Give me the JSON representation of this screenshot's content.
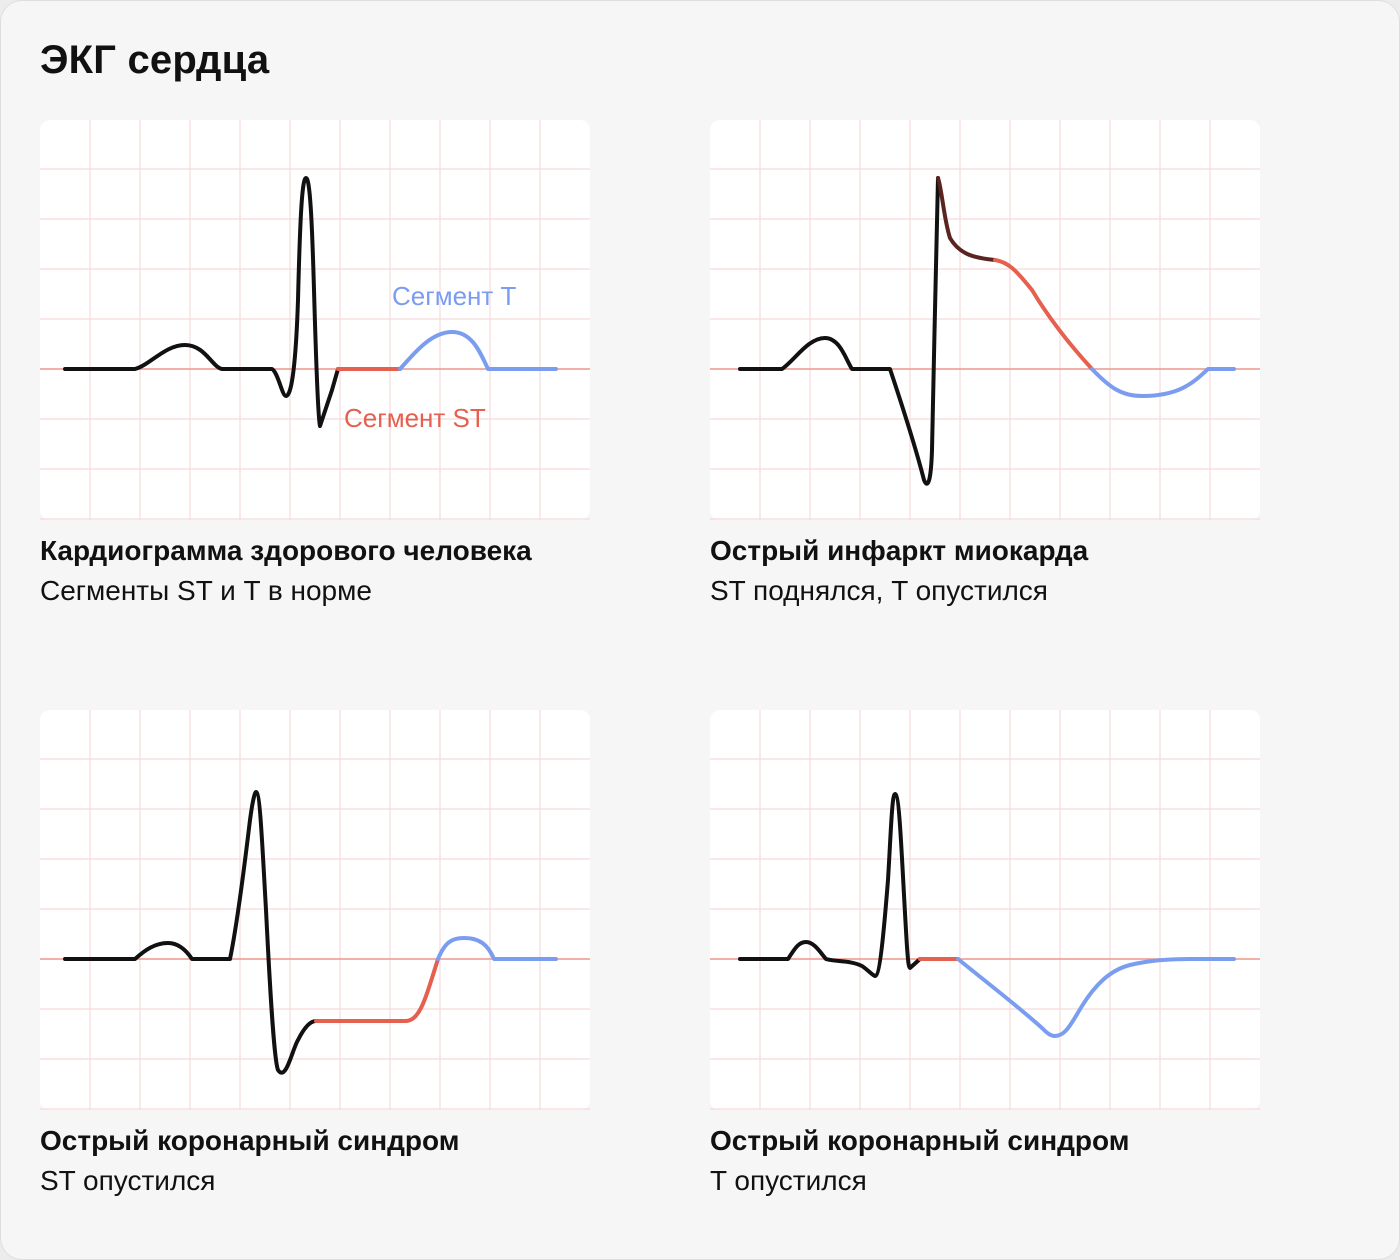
{
  "title": "ЭКГ сердца",
  "colors": {
    "trace": "#111111",
    "st_segment": "#e5604f",
    "t_segment": "#7b9df0",
    "transition": "#5a2520",
    "grid": "#f7dada",
    "baseline": "#ee9a8e",
    "panel": "#ffffff"
  },
  "panels": [
    {
      "title": "Кардиограмма здорового человека",
      "subtitle": "Сегменты ST и T в норме",
      "labels": {
        "t": "Сегмент T",
        "st": "Сегмент ST"
      }
    },
    {
      "title": "Острый инфаркт миокарда",
      "subtitle": "ST поднялся, T опустился"
    },
    {
      "title": "Острый коронарный синдром",
      "subtitle": "ST опустился"
    },
    {
      "title": "Острый коронарный синдром",
      "subtitle": "T опустился"
    }
  ]
}
